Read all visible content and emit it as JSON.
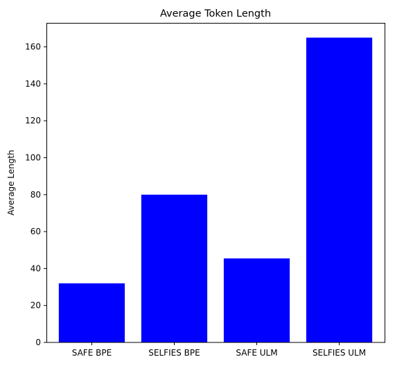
{
  "chart_data": {
    "type": "bar",
    "title": "Average Token Length",
    "xlabel": "",
    "ylabel": "Average Length",
    "categories": [
      "SAFE BPE",
      "SELFIES BPE",
      "SAFE ULM",
      "SELFIES ULM"
    ],
    "values": [
      32,
      80,
      45.5,
      165
    ],
    "ylim": [
      0,
      173
    ],
    "yticks": [
      0,
      20,
      40,
      60,
      80,
      100,
      120,
      140,
      160
    ],
    "bar_color": "#0000ff",
    "grid": false,
    "legend": "none"
  }
}
